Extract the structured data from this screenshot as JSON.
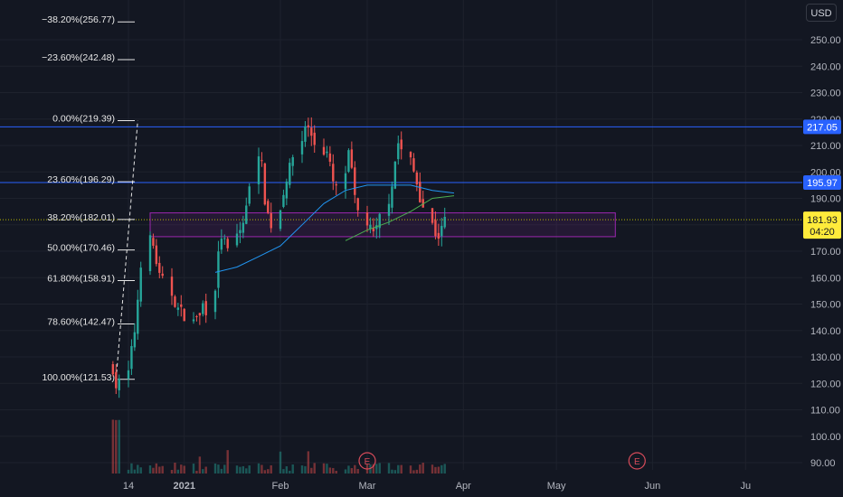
{
  "currency_label": "USD",
  "chart_data": {
    "type": "candlestick",
    "currency": "USD",
    "y_range": [
      86,
      262
    ],
    "y_ticks": [
      "250.00",
      "240.00",
      "230.00",
      "220.00",
      "210.00",
      "200.00",
      "190.00",
      "180.00",
      "170.00",
      "160.00",
      "150.00",
      "140.00",
      "130.00",
      "120.00",
      "110.00",
      "100.00",
      "90.00"
    ],
    "y_tick_values": [
      250,
      240,
      230,
      220,
      210,
      200,
      190,
      180,
      170,
      160,
      150,
      140,
      130,
      120,
      110,
      100,
      90
    ],
    "x_ticks": [
      "14",
      "2021",
      "Feb",
      "Mar",
      "Apr",
      "May",
      "Jun",
      "Ju"
    ],
    "x_tick_dates": [
      "2020-12-14",
      "2021-01-01",
      "2021-02-01",
      "2021-03-01",
      "2021-04-01",
      "2021-05-01",
      "2021-06-01",
      "2021-07-01"
    ],
    "fib_levels": [
      {
        "label": "−38.20%(256.77)",
        "value": 256.77
      },
      {
        "label": "−23.60%(242.48)",
        "value": 242.48
      },
      {
        "label": "0.00%(219.39)",
        "value": 219.39
      },
      {
        "label": "23.60%(196.29)",
        "value": 196.29
      },
      {
        "label": "38.20%(182.01)",
        "value": 182.01
      },
      {
        "label": "50.00%(170.46)",
        "value": 170.46
      },
      {
        "label": "61.80%(158.91)",
        "value": 158.91
      },
      {
        "label": "78.60%(142.47)",
        "value": 142.47
      },
      {
        "label": "100.00%(121.53)",
        "value": 121.53
      }
    ],
    "horizontal_lines": [
      {
        "value": 217.05,
        "label": "217.05",
        "color": "#2962ff"
      },
      {
        "value": 195.97,
        "label": "195.97",
        "color": "#2962ff"
      }
    ],
    "zone": {
      "from_date": "2020-12-21",
      "to_date": "2021-05-20",
      "top": 184.5,
      "bottom": 175.5,
      "color": "#9c27b0"
    },
    "last_price": {
      "value": 181.93,
      "label": "181.93",
      "countdown": "04:20",
      "color": "#ffeb3b"
    },
    "earnings_markers": [
      {
        "date": "2021-03-01",
        "label": "E"
      },
      {
        "date": "2021-05-27",
        "label": "E"
      }
    ],
    "price_path": [
      [
        "2020-12-09",
        126
      ],
      [
        "2020-12-10",
        119
      ],
      [
        "2020-12-14",
        124
      ],
      [
        "2020-12-15",
        132
      ],
      [
        "2020-12-16",
        140
      ],
      [
        "2020-12-17",
        152
      ],
      [
        "2020-12-18",
        166
      ],
      [
        "2020-12-21",
        174
      ],
      [
        "2020-12-22",
        172
      ],
      [
        "2020-12-23",
        166
      ],
      [
        "2020-12-24",
        160
      ],
      [
        "2020-12-28",
        154
      ],
      [
        "2020-12-29",
        151
      ],
      [
        "2020-12-30",
        148
      ],
      [
        "2020-12-31",
        147
      ],
      [
        "2021-01-04",
        143
      ],
      [
        "2021-01-05",
        146
      ],
      [
        "2021-01-06",
        145
      ],
      [
        "2021-01-07",
        150
      ],
      [
        "2021-01-08",
        148
      ],
      [
        "2021-01-11",
        157
      ],
      [
        "2021-01-12",
        168
      ],
      [
        "2021-01-13",
        176
      ],
      [
        "2021-01-14",
        173
      ],
      [
        "2021-01-15",
        170
      ],
      [
        "2021-01-19",
        178
      ],
      [
        "2021-01-20",
        181
      ],
      [
        "2021-01-21",
        186
      ],
      [
        "2021-01-22",
        196
      ],
      [
        "2021-01-25",
        208
      ],
      [
        "2021-01-26",
        202
      ],
      [
        "2021-01-27",
        190
      ],
      [
        "2021-01-28",
        184
      ],
      [
        "2021-01-29",
        180
      ],
      [
        "2021-02-01",
        186
      ],
      [
        "2021-02-02",
        193
      ],
      [
        "2021-02-03",
        198
      ],
      [
        "2021-02-04",
        201
      ],
      [
        "2021-02-05",
        206
      ],
      [
        "2021-02-08",
        212
      ],
      [
        "2021-02-09",
        218
      ],
      [
        "2021-02-10",
        216
      ],
      [
        "2021-02-11",
        214
      ],
      [
        "2021-02-12",
        211
      ],
      [
        "2021-02-16",
        207
      ],
      [
        "2021-02-17",
        202
      ],
      [
        "2021-02-18",
        196
      ],
      [
        "2021-02-19",
        193
      ],
      [
        "2021-02-22",
        200
      ],
      [
        "2021-02-23",
        206
      ],
      [
        "2021-02-24",
        200
      ],
      [
        "2021-02-25",
        189
      ],
      [
        "2021-02-26",
        185
      ],
      [
        "2021-03-01",
        181
      ],
      [
        "2021-03-02",
        178
      ],
      [
        "2021-03-03",
        176
      ],
      [
        "2021-03-04",
        178
      ],
      [
        "2021-03-05",
        183
      ],
      [
        "2021-03-08",
        190
      ],
      [
        "2021-03-09",
        196
      ],
      [
        "2021-03-10",
        204
      ],
      [
        "2021-03-11",
        211
      ],
      [
        "2021-03-12",
        208
      ],
      [
        "2021-03-15",
        204
      ],
      [
        "2021-03-16",
        200
      ],
      [
        "2021-03-17",
        196
      ],
      [
        "2021-03-18",
        191
      ],
      [
        "2021-03-19",
        187
      ],
      [
        "2021-03-22",
        180
      ],
      [
        "2021-03-23",
        177
      ],
      [
        "2021-03-24",
        176
      ],
      [
        "2021-03-25",
        178
      ],
      [
        "2021-03-26",
        181.93
      ]
    ],
    "moving_averages": [
      {
        "color": "#2196f3",
        "points": [
          [
            "2021-01-11",
            162
          ],
          [
            "2021-01-18",
            164
          ],
          [
            "2021-01-25",
            168
          ],
          [
            "2021-02-01",
            172
          ],
          [
            "2021-02-08",
            180
          ],
          [
            "2021-02-15",
            188
          ],
          [
            "2021-02-22",
            193
          ],
          [
            "2021-03-01",
            195
          ],
          [
            "2021-03-08",
            195
          ],
          [
            "2021-03-15",
            195
          ],
          [
            "2021-03-22",
            193
          ],
          [
            "2021-03-29",
            192
          ]
        ]
      },
      {
        "color": "#4caf50",
        "points": [
          [
            "2021-02-22",
            174
          ],
          [
            "2021-03-01",
            178
          ],
          [
            "2021-03-08",
            181
          ],
          [
            "2021-03-15",
            185
          ],
          [
            "2021-03-22",
            190
          ],
          [
            "2021-03-29",
            191
          ]
        ]
      }
    ]
  }
}
